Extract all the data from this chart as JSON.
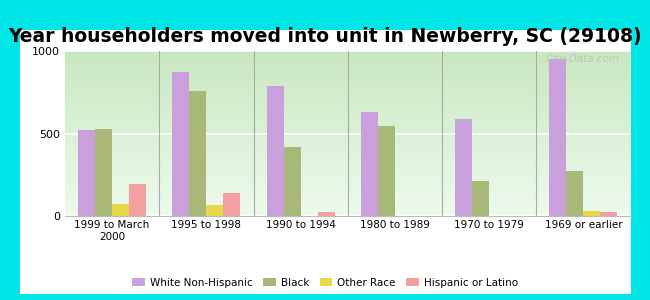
{
  "title": "Year householders moved into unit in Newberry, SC (29108)",
  "categories": [
    "1999 to March\n2000",
    "1995 to 1998",
    "1990 to 1994",
    "1980 to 1989",
    "1970 to 1979",
    "1969 or earlier"
  ],
  "series": {
    "White Non-Hispanic": [
      520,
      870,
      790,
      630,
      590,
      950
    ],
    "Black": [
      530,
      760,
      420,
      545,
      210,
      270
    ],
    "Other Race": [
      75,
      65,
      0,
      0,
      0,
      30
    ],
    "Hispanic or Latino": [
      195,
      140,
      25,
      0,
      0,
      25
    ]
  },
  "colors": {
    "White Non-Hispanic": "#c9a0dc",
    "Black": "#a8b878",
    "Other Race": "#e8d84a",
    "Hispanic or Latino": "#f4a0a0"
  },
  "ylim": [
    0,
    1000
  ],
  "yticks": [
    0,
    500,
    1000
  ],
  "plot_bg_top": "#d8f0d0",
  "plot_bg_bottom": "#f0faf0",
  "outer_background": "#00e5e5",
  "watermark": "City-Däta.com",
  "title_fontsize": 13.5,
  "bar_width": 0.18
}
